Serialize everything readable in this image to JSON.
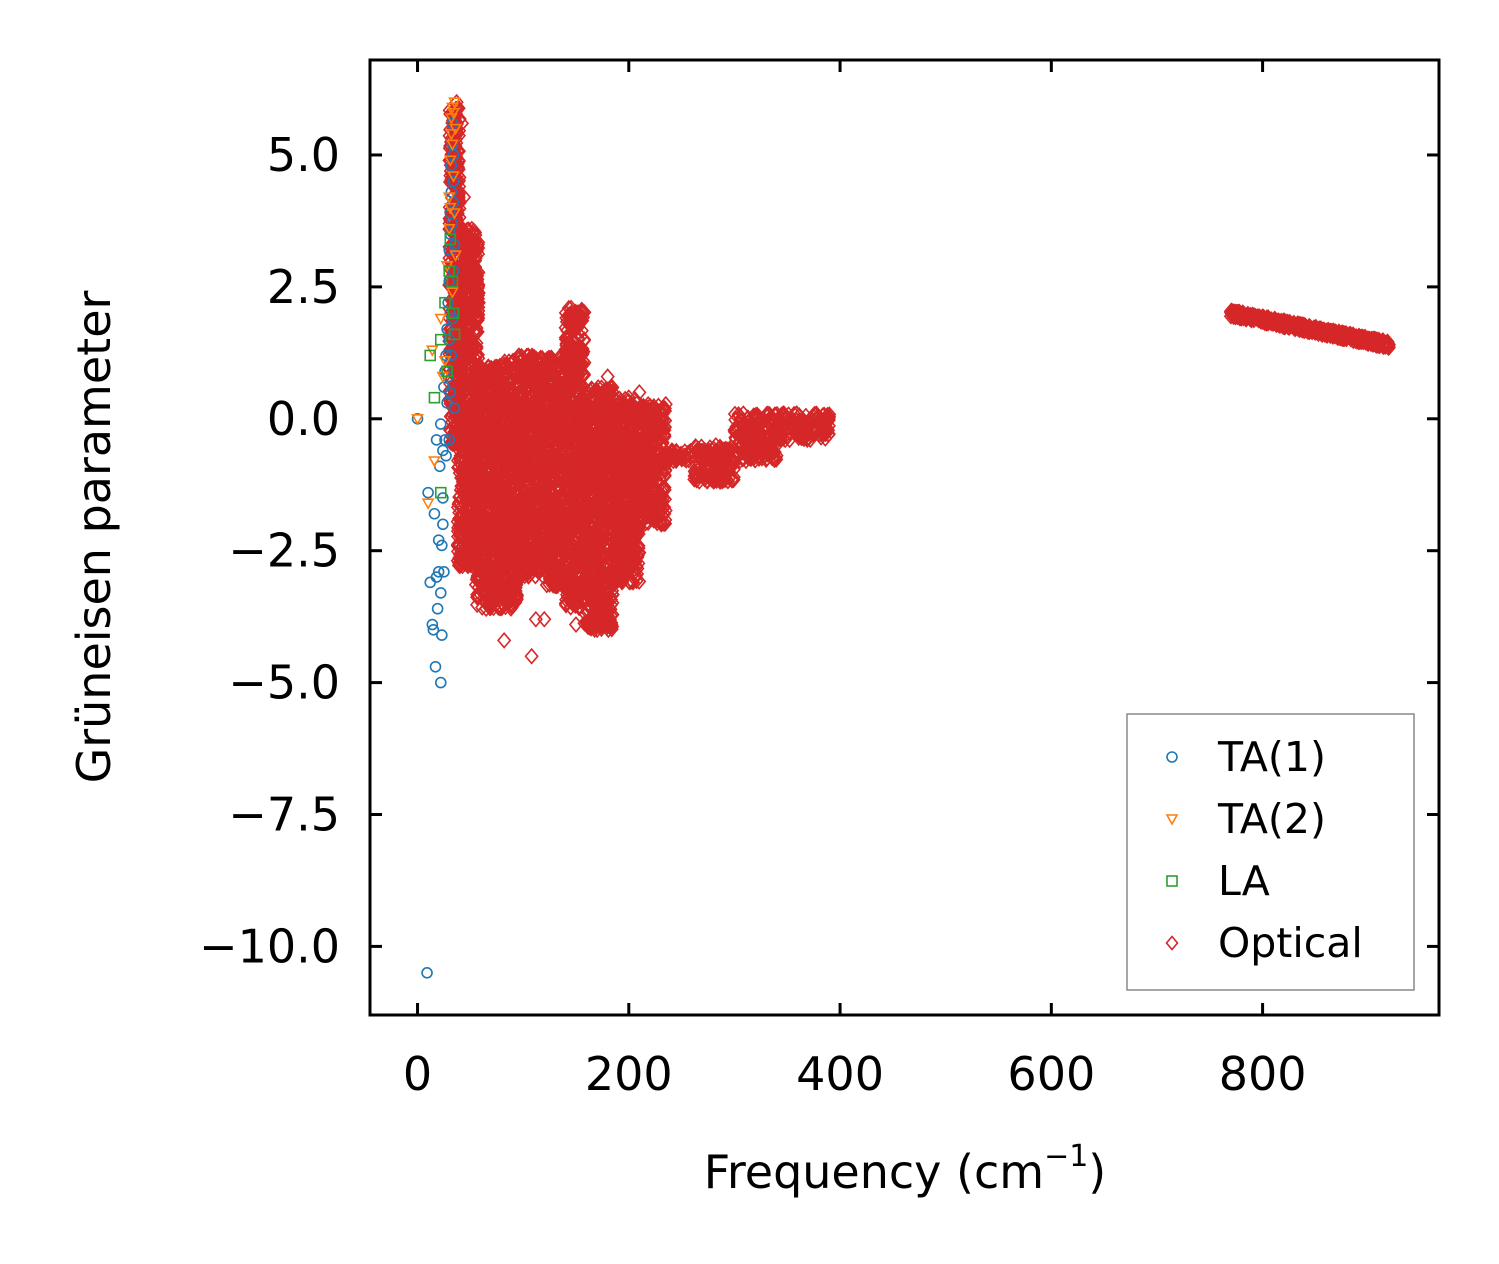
{
  "chart_data": {
    "type": "scatter",
    "title": "",
    "xlabel": "Frequency (cm",
    "xlabel_sup": "−1",
    "xlabel_close": ")",
    "ylabel": "Grüneisen parameter",
    "xlim": [
      -45,
      967
    ],
    "ylim": [
      -11.3,
      6.8
    ],
    "xticks": [
      0,
      200,
      400,
      600,
      800
    ],
    "xtick_labels": [
      "0",
      "200",
      "400",
      "600",
      "800"
    ],
    "yticks": [
      5.0,
      2.5,
      0.0,
      -2.5,
      -5.0,
      -7.5,
      -10.0
    ],
    "ytick_labels": [
      "5.0",
      "2.5",
      "0.0",
      "−2.5",
      "−5.0",
      "−7.5",
      "−10.0"
    ],
    "grid": false,
    "legend_position": "lower-right",
    "series": [
      {
        "name": "TA(1)",
        "marker": "circle",
        "color": "#1f77b4",
        "points": [
          [
            0,
            0.0
          ],
          [
            9,
            -10.5
          ],
          [
            10,
            -1.4
          ],
          [
            12,
            -3.1
          ],
          [
            14,
            -3.9
          ],
          [
            15,
            -4.0
          ],
          [
            17,
            -4.7
          ],
          [
            16,
            -1.8
          ],
          [
            18,
            -0.4
          ],
          [
            18,
            -3.0
          ],
          [
            19,
            -3.6
          ],
          [
            20,
            -2.3
          ],
          [
            20,
            -2.9
          ],
          [
            21,
            -0.9
          ],
          [
            22,
            -5.0
          ],
          [
            22,
            -0.1
          ],
          [
            22,
            -3.3
          ],
          [
            23,
            -4.1
          ],
          [
            23,
            -2.4
          ],
          [
            24,
            -1.5
          ],
          [
            24,
            -2.0
          ],
          [
            24,
            -0.6
          ],
          [
            25,
            -2.9
          ],
          [
            25,
            0.6
          ],
          [
            26,
            -0.4
          ],
          [
            26,
            0.9
          ],
          [
            27,
            1.2
          ],
          [
            27,
            -0.7
          ],
          [
            28,
            1.7
          ],
          [
            28,
            0.3
          ],
          [
            29,
            2.2
          ],
          [
            29,
            0.8
          ],
          [
            30,
            2.6
          ],
          [
            30,
            3.2
          ],
          [
            30,
            1.5
          ],
          [
            31,
            3.5
          ],
          [
            31,
            2.0
          ],
          [
            31,
            3.9
          ],
          [
            32,
            4.3
          ],
          [
            32,
            4.8
          ],
          [
            32,
            1.2
          ],
          [
            33,
            5.2
          ],
          [
            33,
            5.6
          ],
          [
            33,
            3.7
          ],
          [
            34,
            4.5
          ],
          [
            34,
            5.0
          ],
          [
            34,
            2.8
          ],
          [
            35,
            3.3
          ],
          [
            35,
            0.2
          ],
          [
            30,
            -0.4
          ],
          [
            33,
            1.9
          ],
          [
            31,
            0.5
          ],
          [
            34,
            4.1
          ]
        ]
      },
      {
        "name": "TA(2)",
        "marker": "triangle-down",
        "color": "#ff7f0e",
        "points": [
          [
            0,
            0.0
          ],
          [
            10,
            -1.6
          ],
          [
            14,
            1.3
          ],
          [
            16,
            -0.8
          ],
          [
            22,
            1.9
          ],
          [
            24,
            0.8
          ],
          [
            26,
            1.1
          ],
          [
            28,
            2.9
          ],
          [
            30,
            3.6
          ],
          [
            30,
            4.2
          ],
          [
            31,
            4.9
          ],
          [
            32,
            5.4
          ],
          [
            32,
            5.7
          ],
          [
            33,
            5.9
          ],
          [
            33,
            5.2
          ],
          [
            34,
            4.6
          ],
          [
            34,
            5.8
          ],
          [
            35,
            3.9
          ],
          [
            35,
            6.0
          ],
          [
            36,
            5.5
          ],
          [
            36,
            3.1
          ],
          [
            31,
            4.0
          ],
          [
            33,
            2.4
          ]
        ]
      },
      {
        "name": "LA",
        "marker": "square",
        "color": "#2ca02c",
        "points": [
          [
            12,
            1.2
          ],
          [
            16,
            0.4
          ],
          [
            22,
            -1.4
          ],
          [
            22,
            1.5
          ],
          [
            26,
            2.2
          ],
          [
            28,
            0.9
          ],
          [
            30,
            2.8
          ],
          [
            31,
            3.4
          ],
          [
            33,
            2.6
          ],
          [
            34,
            2.0
          ],
          [
            35,
            1.6
          ]
        ]
      },
      {
        "name": "Optical",
        "marker": "diamond",
        "color": "#d62728",
        "clusters": [
          {
            "kind": "band",
            "x": [
              30,
              40
            ],
            "y": [
              -0.5,
              5.9
            ]
          },
          {
            "kind": "band",
            "x": [
              38,
              58
            ],
            "y": [
              -2.8,
              3.6
            ]
          },
          {
            "kind": "band",
            "x": [
              55,
              78
            ],
            "y": [
              -3.6,
              1.0
            ]
          },
          {
            "kind": "band",
            "x": [
              78,
              95
            ],
            "y": [
              -3.6,
              1.1
            ]
          },
          {
            "kind": "band",
            "x": [
              95,
              120
            ],
            "y": [
              -3.0,
              1.2
            ]
          },
          {
            "kind": "band",
            "x": [
              120,
              140
            ],
            "y": [
              -3.2,
              1.2
            ]
          },
          {
            "kind": "band",
            "x": [
              140,
              158
            ],
            "y": [
              -3.6,
              2.1
            ]
          },
          {
            "kind": "band",
            "x": [
              158,
              185
            ],
            "y": [
              -4.0,
              0.6
            ]
          },
          {
            "kind": "band",
            "x": [
              185,
              210
            ],
            "y": [
              -3.1,
              0.4
            ]
          },
          {
            "kind": "band",
            "x": [
              210,
              235
            ],
            "y": [
              -2.0,
              0.3
            ]
          },
          {
            "kind": "band",
            "x": [
              235,
              260
            ],
            "y": [
              -0.8,
              -0.6
            ]
          },
          {
            "kind": "band",
            "x": [
              262,
              300
            ],
            "y": [
              -1.2,
              -0.5
            ]
          },
          {
            "kind": "band",
            "x": [
              300,
              340
            ],
            "y": [
              -0.8,
              0.1
            ]
          },
          {
            "kind": "band",
            "x": [
              340,
              390
            ],
            "y": [
              -0.4,
              0.1
            ]
          },
          {
            "kind": "band",
            "x": [
              770,
              920
            ],
            "y": [
              1.4,
              2.0
            ]
          }
        ],
        "outliers": [
          [
            82,
            -4.2
          ],
          [
            108,
            -4.5
          ],
          [
            112,
            -3.8
          ],
          [
            100,
            0.9
          ],
          [
            92,
            1.1
          ],
          [
            78,
            1.0
          ],
          [
            180,
            0.8
          ],
          [
            200,
            0.4
          ],
          [
            210,
            0.5
          ],
          [
            170,
            -4.0
          ],
          [
            150,
            -3.9
          ],
          [
            120,
            -3.8
          ],
          [
            65,
            -3.6
          ],
          [
            70,
            -3.0
          ],
          [
            55,
            1.2
          ],
          [
            44,
            4.2
          ],
          [
            42,
            5.6
          ],
          [
            37,
            6.0
          ]
        ]
      }
    ]
  }
}
